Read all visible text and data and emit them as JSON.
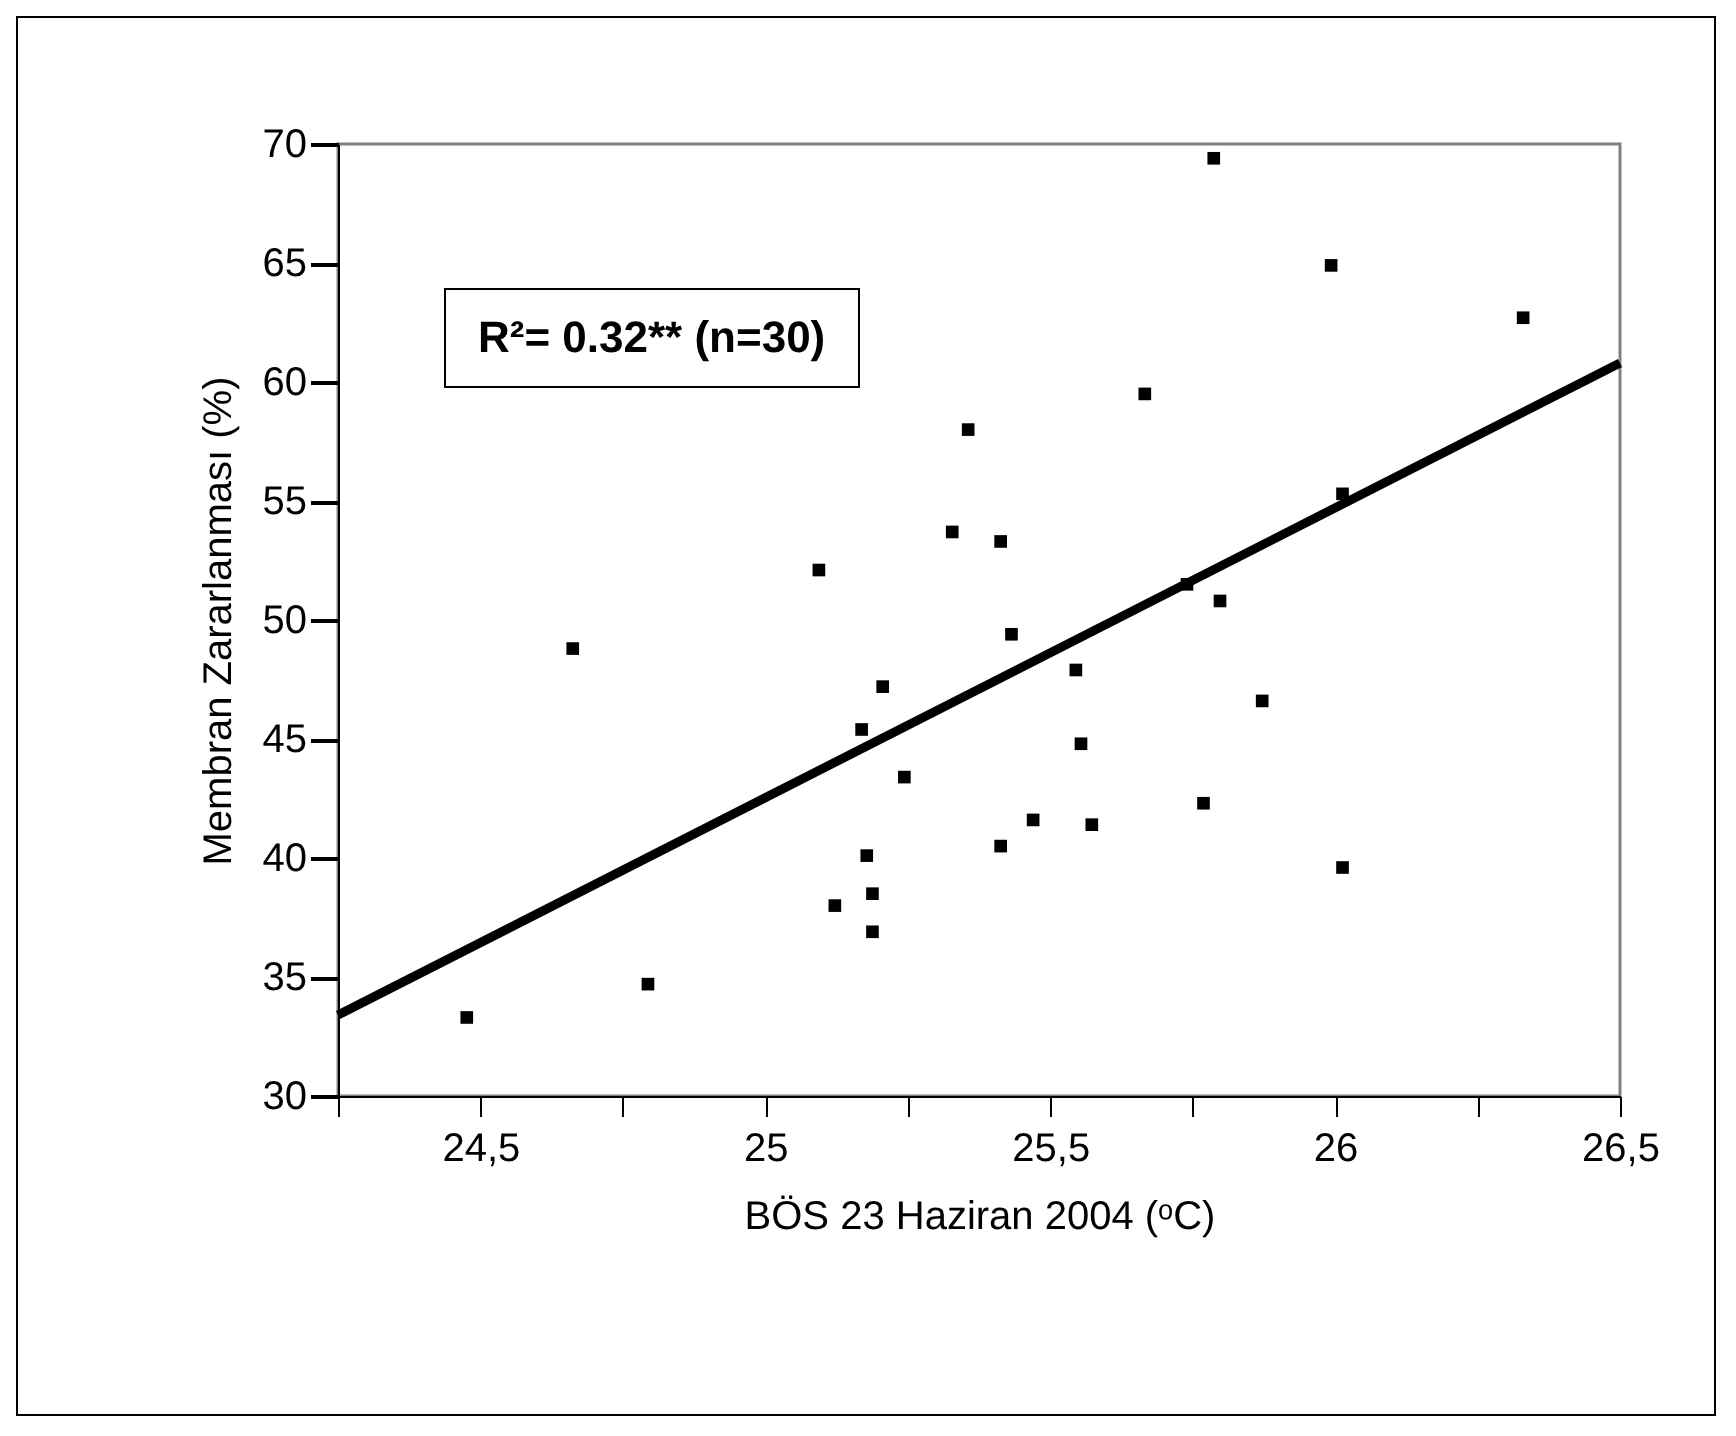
{
  "chart_data": {
    "type": "scatter",
    "xlabel": "BÖS 23 Haziran 2004 (ᵒC)",
    "ylabel": "Membran Zararlanması (%)",
    "annotations": [
      "R²= 0.32** (n=30)"
    ],
    "x": [
      25.094,
      25.328,
      25.356,
      25.787,
      25.993,
      26.33,
      25.666,
      25.413,
      25.432,
      26.013,
      25.74,
      25.798,
      24.662,
      24.476,
      24.794,
      25.206,
      25.169,
      25.244,
      25.178,
      25.188,
      25.122,
      25.188,
      25.545,
      25.872,
      25.554,
      25.769,
      25.47,
      25.573,
      25.413,
      26.013
    ],
    "series": [
      {
        "marker": "square",
        "color": "#000000",
        "values": [
          52.1,
          53.7,
          58.0,
          69.4,
          64.9,
          62.7,
          59.5,
          53.3,
          49.4,
          55.3,
          51.5,
          50.8,
          48.8,
          33.3,
          34.7,
          47.2,
          45.4,
          43.4,
          40.1,
          38.5,
          38.0,
          36.9,
          47.9,
          46.6,
          44.8,
          42.3,
          41.6,
          41.4,
          40.5,
          39.6
        ]
      },
      {
        "type": "line",
        "color": "#000000",
        "x": [
          24.25,
          26.5
        ],
        "values": [
          33.4,
          60.8
        ]
      }
    ],
    "xlim": [
      24.25,
      26.5
    ],
    "xticks": [
      {
        "value": 24.25,
        "label": null
      },
      {
        "value": 24.5,
        "label": "24,5"
      },
      {
        "value": 24.75,
        "label": null
      },
      25,
      {
        "value": 25.25,
        "label": null
      },
      {
        "value": 25.5,
        "label": "25,5"
      },
      {
        "value": 25.75,
        "label": null
      },
      26,
      {
        "value": 26.25,
        "label": null
      },
      {
        "value": 26.5,
        "label": "26,5"
      }
    ],
    "ylim": [
      30,
      70
    ],
    "yticks": [
      30,
      35,
      40,
      45,
      50,
      55,
      60,
      65,
      70
    ],
    "grid": false
  }
}
